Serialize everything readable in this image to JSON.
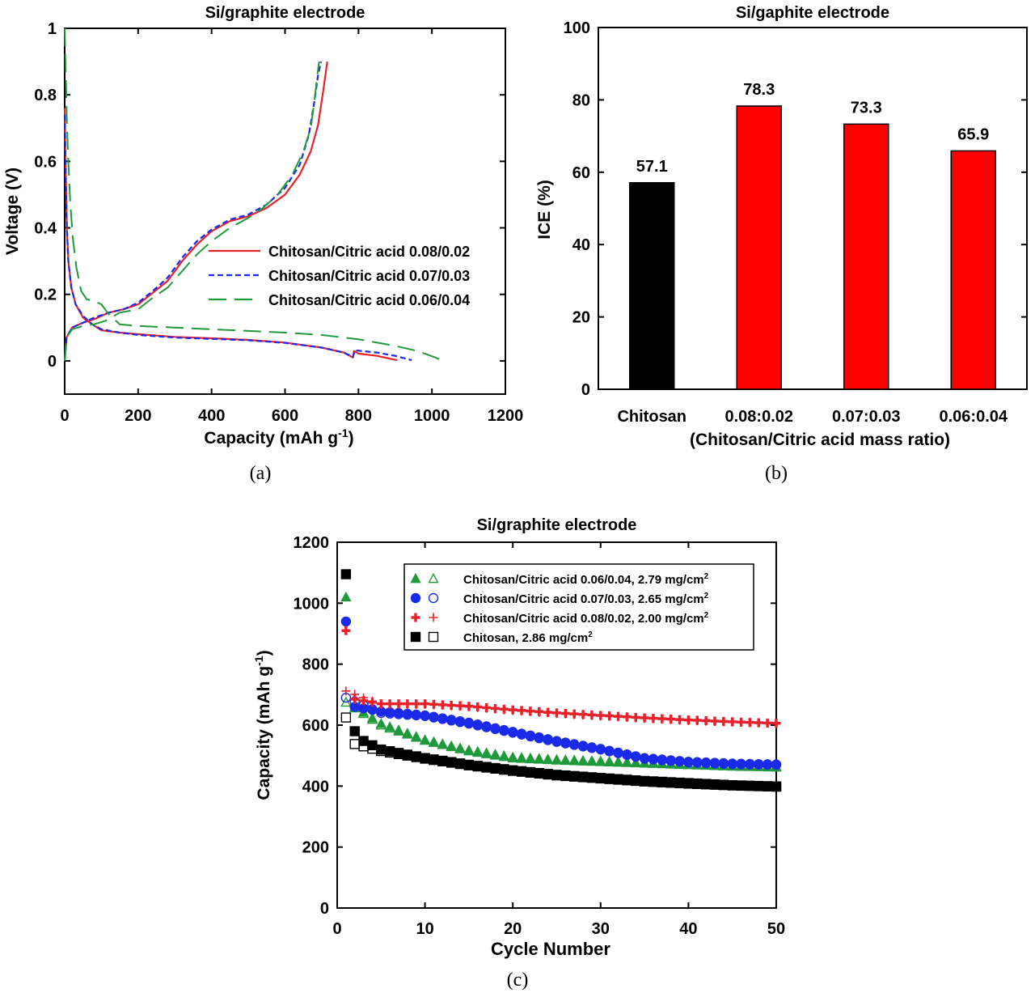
{
  "panels": {
    "a": {
      "caption": "(a)"
    },
    "b": {
      "caption": "(b)"
    },
    "c": {
      "caption": "(c)"
    }
  },
  "chart_data": [
    {
      "panel": "a",
      "type": "line",
      "title": "Si/graphite electrode",
      "xlabel": "Capacity (mAh g",
      "xlabel_sup": "-1",
      "xlabel_end": ")",
      "ylabel": "Voltage (V)",
      "xlim": [
        0,
        1200
      ],
      "ylim": [
        -0.1,
        1.0
      ],
      "xticks": [
        0,
        200,
        400,
        600,
        800,
        1000,
        1200
      ],
      "yticks": [
        0,
        0.2,
        0.4,
        0.6,
        0.8,
        1
      ],
      "ytick_labels": [
        "0",
        "0.2",
        "0.4",
        "0.6",
        "0.8",
        "1"
      ],
      "legend_position": "right-center",
      "series": [
        {
          "name": "Chitosan/Citric acid 0.08/0.02",
          "color": "#e8212a",
          "dash": "solid",
          "discharge": [
            [
              0,
              0.76
            ],
            [
              3,
              0.55
            ],
            [
              6,
              0.4
            ],
            [
              10,
              0.3
            ],
            [
              18,
              0.22
            ],
            [
              30,
              0.17
            ],
            [
              50,
              0.13
            ],
            [
              75,
              0.11
            ],
            [
              100,
              0.092
            ],
            [
              150,
              0.085
            ],
            [
              200,
              0.08
            ],
            [
              300,
              0.072
            ],
            [
              400,
              0.068
            ],
            [
              500,
              0.063
            ],
            [
              600,
              0.055
            ],
            [
              700,
              0.04
            ],
            [
              760,
              0.025
            ],
            [
              785,
              0.01
            ],
            [
              788,
              0.03
            ],
            [
              800,
              0.022
            ],
            [
              850,
              0.015
            ],
            [
              905,
              0.002
            ]
          ],
          "charge": [
            [
              0,
              0.0
            ],
            [
              5,
              0.07
            ],
            [
              20,
              0.1
            ],
            [
              50,
              0.115
            ],
            [
              80,
              0.125
            ],
            [
              120,
              0.145
            ],
            [
              160,
              0.155
            ],
            [
              200,
              0.17
            ],
            [
              240,
              0.205
            ],
            [
              280,
              0.24
            ],
            [
              320,
              0.3
            ],
            [
              360,
              0.35
            ],
            [
              400,
              0.39
            ],
            [
              450,
              0.42
            ],
            [
              500,
              0.435
            ],
            [
              550,
              0.46
            ],
            [
              600,
              0.5
            ],
            [
              640,
              0.56
            ],
            [
              670,
              0.63
            ],
            [
              690,
              0.71
            ],
            [
              705,
              0.82
            ],
            [
              715,
              0.9
            ]
          ]
        },
        {
          "name": "Chitosan/Citric acid 0.07/0.03",
          "color": "#1a2ae8",
          "dash": "short",
          "discharge": [
            [
              0,
              0.74
            ],
            [
              3,
              0.54
            ],
            [
              6,
              0.4
            ],
            [
              10,
              0.3
            ],
            [
              18,
              0.22
            ],
            [
              30,
              0.17
            ],
            [
              50,
              0.135
            ],
            [
              75,
              0.11
            ],
            [
              100,
              0.095
            ],
            [
              150,
              0.085
            ],
            [
              200,
              0.078
            ],
            [
              300,
              0.07
            ],
            [
              400,
              0.066
            ],
            [
              500,
              0.062
            ],
            [
              600,
              0.054
            ],
            [
              700,
              0.04
            ],
            [
              760,
              0.025
            ],
            [
              785,
              0.012
            ],
            [
              790,
              0.032
            ],
            [
              850,
              0.025
            ],
            [
              900,
              0.015
            ],
            [
              945,
              0.002
            ]
          ],
          "charge": [
            [
              0,
              0.0
            ],
            [
              5,
              0.07
            ],
            [
              20,
              0.1
            ],
            [
              50,
              0.115
            ],
            [
              80,
              0.13
            ],
            [
              120,
              0.145
            ],
            [
              160,
              0.155
            ],
            [
              200,
              0.175
            ],
            [
              240,
              0.21
            ],
            [
              280,
              0.25
            ],
            [
              320,
              0.31
            ],
            [
              360,
              0.36
            ],
            [
              400,
              0.395
            ],
            [
              450,
              0.425
            ],
            [
              500,
              0.44
            ],
            [
              550,
              0.47
            ],
            [
              600,
              0.52
            ],
            [
              640,
              0.59
            ],
            [
              665,
              0.68
            ],
            [
              680,
              0.78
            ],
            [
              690,
              0.86
            ],
            [
              698,
              0.9
            ]
          ]
        },
        {
          "name": "Chitosan/Citric acid 0.06/0.04",
          "color": "#1f9a3a",
          "dash": "long",
          "discharge": [
            [
              0,
              1.0
            ],
            [
              3,
              0.86
            ],
            [
              6,
              0.72
            ],
            [
              10,
              0.6
            ],
            [
              15,
              0.48
            ],
            [
              22,
              0.37
            ],
            [
              32,
              0.28
            ],
            [
              45,
              0.21
            ],
            [
              60,
              0.185
            ],
            [
              80,
              0.18
            ],
            [
              100,
              0.17
            ],
            [
              120,
              0.14
            ],
            [
              150,
              0.11
            ],
            [
              200,
              0.105
            ],
            [
              300,
              0.1
            ],
            [
              400,
              0.095
            ],
            [
              500,
              0.09
            ],
            [
              600,
              0.085
            ],
            [
              700,
              0.078
            ],
            [
              800,
              0.065
            ],
            [
              900,
              0.045
            ],
            [
              960,
              0.03
            ],
            [
              1010,
              0.01
            ],
            [
              1020,
              0.005
            ]
          ],
          "charge": [
            [
              0,
              0.0
            ],
            [
              5,
              0.07
            ],
            [
              20,
              0.095
            ],
            [
              50,
              0.105
            ],
            [
              80,
              0.11
            ],
            [
              110,
              0.12
            ],
            [
              150,
              0.145
            ],
            [
              200,
              0.155
            ],
            [
              240,
              0.19
            ],
            [
              280,
              0.22
            ],
            [
              320,
              0.27
            ],
            [
              360,
              0.32
            ],
            [
              400,
              0.36
            ],
            [
              450,
              0.4
            ],
            [
              500,
              0.43
            ],
            [
              540,
              0.46
            ],
            [
              580,
              0.5
            ],
            [
              620,
              0.56
            ],
            [
              650,
              0.63
            ],
            [
              670,
              0.7
            ],
            [
              680,
              0.78
            ],
            [
              688,
              0.86
            ],
            [
              693,
              0.9
            ]
          ]
        }
      ]
    },
    {
      "panel": "b",
      "type": "bar",
      "title": "Si/gaphite electrode",
      "ylabel": "ICE (%)",
      "xlabel": "(Chitosan/Citric acid mass ratio)",
      "ylim": [
        0,
        100
      ],
      "yticks": [
        0,
        20,
        40,
        60,
        80,
        100
      ],
      "categories": [
        "Chitosan",
        "0.08:0.02",
        "0.07:0.03",
        "0.06:0.04"
      ],
      "values": [
        57.1,
        78.3,
        73.3,
        65.9
      ],
      "value_labels": [
        "57.1",
        "78.3",
        "73.3",
        "65.9"
      ],
      "colors": [
        "#000000",
        "#ff0000",
        "#ff0000",
        "#ff0000"
      ]
    },
    {
      "panel": "c",
      "type": "scatter",
      "title": "Si/graphite electrode",
      "xlabel": "Cycle Number",
      "ylabel": "Capacity (mAh g",
      "ylabel_sup": "-1",
      "ylabel_end": ")",
      "xlim": [
        0,
        50
      ],
      "ylim": [
        0,
        1200
      ],
      "xticks": [
        0,
        10,
        20,
        30,
        40,
        50
      ],
      "yticks": [
        0,
        200,
        400,
        600,
        800,
        1000,
        1200
      ],
      "legend_position": "top-right",
      "series": [
        {
          "name": "Chitosan/Citric acid  0.06/0.04, 2.79 mg/cm",
          "name_sup": "2",
          "color": "#1f9a3a",
          "marker": "triangle",
          "first_discharge": [
            1,
            1020
          ],
          "charge_points": [
            [
              1,
              675
            ],
            [
              5,
              600
            ],
            [
              10,
              550
            ],
            [
              15,
              515
            ],
            [
              20,
              492
            ],
            [
              25,
              485
            ],
            [
              30,
              480
            ],
            [
              35,
              475
            ],
            [
              40,
              470
            ],
            [
              45,
              465
            ],
            [
              50,
              462
            ]
          ],
          "discharge_points": [
            [
              2,
              660
            ],
            [
              5,
              605
            ],
            [
              10,
              552
            ],
            [
              15,
              518
            ],
            [
              20,
              495
            ],
            [
              25,
              487
            ],
            [
              30,
              482
            ],
            [
              35,
              477
            ],
            [
              40,
              472
            ],
            [
              45,
              467
            ],
            [
              50,
              464
            ]
          ]
        },
        {
          "name": "Chitosan/Citric acid  0.07/0.03, 2.65 mg/cm",
          "name_sup": "2",
          "color": "#1a2ae8",
          "marker": "circle",
          "first_discharge": [
            1,
            940
          ],
          "charge_points": [
            [
              1,
              690
            ],
            [
              5,
              640
            ],
            [
              10,
              630
            ],
            [
              15,
              605
            ],
            [
              20,
              575
            ],
            [
              25,
              545
            ],
            [
              30,
              520
            ],
            [
              35,
              490
            ],
            [
              40,
              478
            ],
            [
              45,
              472
            ],
            [
              50,
              470
            ]
          ],
          "discharge_points": [
            [
              2,
              660
            ],
            [
              5,
              645
            ],
            [
              10,
              632
            ],
            [
              15,
              608
            ],
            [
              20,
              578
            ],
            [
              25,
              548
            ],
            [
              30,
              522
            ],
            [
              35,
              492
            ],
            [
              40,
              480
            ],
            [
              45,
              474
            ],
            [
              50,
              471
            ]
          ]
        },
        {
          "name": "Chitosan/Citric acid  0.08/0.02, 2.00 mg/cm",
          "name_sup": "2",
          "color": "#e8212a",
          "marker": "plus",
          "first_discharge": [
            1,
            910
          ],
          "charge_points": [
            [
              1,
              712
            ],
            [
              5,
              668
            ],
            [
              10,
              668
            ],
            [
              15,
              660
            ],
            [
              20,
              648
            ],
            [
              25,
              638
            ],
            [
              30,
              630
            ],
            [
              35,
              622
            ],
            [
              40,
              615
            ],
            [
              45,
              610
            ],
            [
              50,
              605
            ]
          ],
          "discharge_points": [
            [
              2,
              685
            ],
            [
              5,
              670
            ],
            [
              10,
              670
            ],
            [
              15,
              662
            ],
            [
              20,
              650
            ],
            [
              25,
              640
            ],
            [
              30,
              632
            ],
            [
              35,
              624
            ],
            [
              40,
              617
            ],
            [
              45,
              611
            ],
            [
              50,
              606
            ]
          ]
        },
        {
          "name": "Chitosan, 2.86 mg/cm",
          "name_sup": "2",
          "color": "#000000",
          "marker": "square",
          "first_discharge": [
            1,
            1095
          ],
          "charge_points": [
            [
              1,
              625
            ],
            [
              2,
              538
            ],
            [
              5,
              515
            ],
            [
              10,
              490
            ],
            [
              15,
              468
            ],
            [
              20,
              450
            ],
            [
              25,
              435
            ],
            [
              30,
              425
            ],
            [
              35,
              415
            ],
            [
              40,
              408
            ],
            [
              45,
              402
            ],
            [
              50,
              398
            ]
          ],
          "discharge_points": [
            [
              2,
              580
            ],
            [
              3,
              548
            ],
            [
              5,
              520
            ],
            [
              10,
              492
            ],
            [
              15,
              470
            ],
            [
              20,
              452
            ],
            [
              25,
              437
            ],
            [
              30,
              427
            ],
            [
              35,
              417
            ],
            [
              40,
              410
            ],
            [
              45,
              403
            ],
            [
              50,
              399
            ]
          ]
        }
      ]
    }
  ]
}
